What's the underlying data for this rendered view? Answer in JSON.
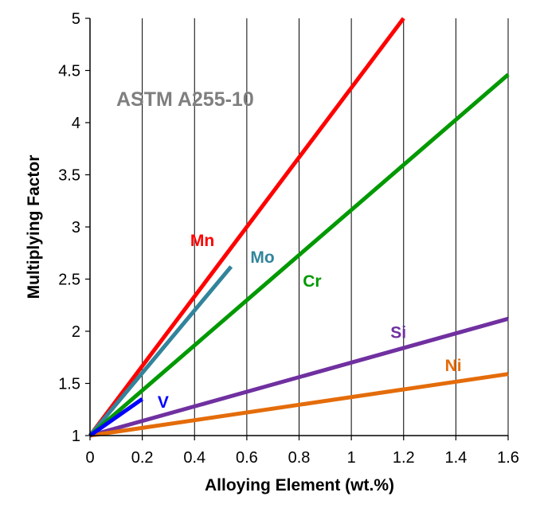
{
  "chart_data": {
    "type": "line",
    "title": "",
    "annotation": "ASTM A255-10",
    "xlabel": "Alloying Element (wt.%)",
    "ylabel": "Multiplying Factor",
    "xlim": [
      0,
      1.6
    ],
    "ylim": [
      1,
      5
    ],
    "xticks": [
      0,
      0.2,
      0.4,
      0.6,
      0.8,
      1,
      1.2,
      1.4,
      1.6
    ],
    "yticks": [
      1,
      1.5,
      2,
      2.5,
      3,
      3.5,
      4,
      4.5,
      5
    ],
    "xtick_labels": [
      "0",
      "0.2",
      "0.4",
      "0.6",
      "0.8",
      "1",
      "1.2",
      "1.4",
      "1.6"
    ],
    "ytick_labels": [
      "1",
      "1.5",
      "2",
      "2.5",
      "3",
      "3.5",
      "4",
      "4.5",
      "5"
    ],
    "grid": "vertical",
    "legend": "inline labels",
    "series": [
      {
        "name": "Mn",
        "color": "#ff0000",
        "x": [
          0,
          1.2
        ],
        "y": [
          1,
          5.0
        ],
        "label_at": [
          0.43,
          2.87
        ]
      },
      {
        "name": "Mo",
        "color": "#31849b",
        "x": [
          0,
          0.54
        ],
        "y": [
          1,
          2.62
        ],
        "label_at": [
          0.66,
          2.71
        ]
      },
      {
        "name": "Cr",
        "color": "#009900",
        "x": [
          0,
          1.6
        ],
        "y": [
          1,
          4.46
        ],
        "label_at": [
          0.85,
          2.48
        ]
      },
      {
        "name": "Si",
        "color": "#7030a0",
        "x": [
          0,
          1.6
        ],
        "y": [
          1,
          2.12
        ],
        "label_at": [
          1.18,
          1.99
        ]
      },
      {
        "name": "Ni",
        "color": "#e46c0a",
        "x": [
          0,
          1.6
        ],
        "y": [
          1,
          1.59
        ],
        "label_at": [
          1.39,
          1.67
        ]
      },
      {
        "name": "V",
        "color": "#0000ff",
        "x": [
          0,
          0.2
        ],
        "y": [
          1,
          1.35
        ],
        "label_at": [
          0.28,
          1.32
        ]
      }
    ]
  }
}
